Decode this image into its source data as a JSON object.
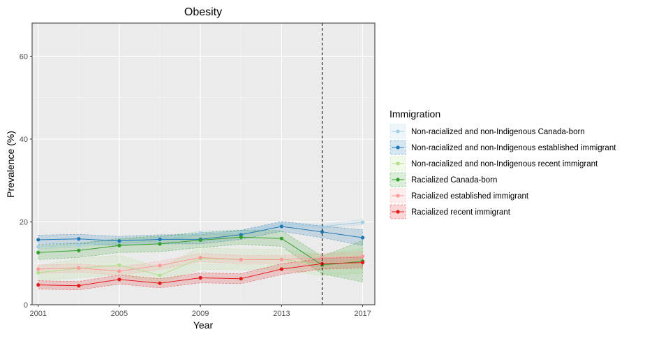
{
  "chart_data": {
    "type": "line",
    "title": "Obesity",
    "xlabel": "Year",
    "ylabel": "Prevalence (%)",
    "xlim": [
      2000.7,
      2017.6
    ],
    "ylim": [
      0,
      68
    ],
    "x_ticks": [
      2001,
      2005,
      2009,
      2013,
      2017
    ],
    "y_ticks": [
      0,
      20,
      40,
      60
    ],
    "grid": true,
    "vline_x": 2015,
    "legend": {
      "title": "Immigration",
      "position": "right"
    },
    "x": [
      2001,
      2003,
      2005,
      2007,
      2009,
      2011,
      2013,
      2015,
      2017
    ],
    "series": [
      {
        "name": "Non-racialized and non-Indigenous Canada-born",
        "color": "#a6cee3",
        "values": [
          14.0,
          14.4,
          15.3,
          15.9,
          17.3,
          17.5,
          19.4,
          18.9,
          19.9
        ],
        "lower": [
          13.4,
          13.9,
          14.8,
          15.4,
          16.8,
          17.0,
          18.9,
          18.4,
          19.3
        ],
        "upper": [
          14.6,
          14.9,
          15.8,
          16.4,
          17.8,
          18.0,
          19.9,
          19.4,
          20.5
        ]
      },
      {
        "name": "Non-racialized and non-Indigenous established immigrant",
        "color": "#1f78b4",
        "values": [
          15.7,
          15.9,
          15.4,
          15.8,
          15.8,
          16.9,
          18.9,
          17.6,
          16.2
        ],
        "lower": [
          14.6,
          14.8,
          14.3,
          14.7,
          14.7,
          15.8,
          17.7,
          16.2,
          14.3
        ],
        "upper": [
          16.8,
          17.0,
          16.5,
          16.9,
          16.9,
          18.0,
          20.1,
          19.0,
          18.1
        ]
      },
      {
        "name": "Non-racialized and non-Indigenous recent immigrant",
        "color": "#b2df8a",
        "values": [
          7.7,
          8.8,
          9.6,
          7.1,
          11.2,
          10.9,
          11.0,
          9.6,
          10.6
        ],
        "lower": [
          5.9,
          6.5,
          7.2,
          5.2,
          8.6,
          8.4,
          8.6,
          7.0,
          7.6
        ],
        "upper": [
          9.5,
          11.1,
          12.0,
          9.0,
          13.8,
          13.4,
          13.4,
          12.2,
          13.6
        ]
      },
      {
        "name": "Racialized Canada-born",
        "color": "#33a02c",
        "values": [
          12.6,
          13.1,
          14.3,
          14.7,
          15.6,
          16.3,
          16.0,
          9.6,
          10.5
        ],
        "lower": [
          10.9,
          11.4,
          12.6,
          12.8,
          13.8,
          14.6,
          14.1,
          7.5,
          5.5
        ],
        "upper": [
          14.3,
          14.8,
          16.0,
          16.6,
          17.4,
          18.0,
          17.9,
          11.7,
          15.5
        ]
      },
      {
        "name": "Racialized established immigrant",
        "color": "#fb9a99",
        "values": [
          8.6,
          8.9,
          8.1,
          9.5,
          11.4,
          10.9,
          10.9,
          11.3,
          11.7
        ],
        "lower": [
          7.6,
          7.9,
          7.1,
          8.5,
          10.4,
          9.9,
          9.9,
          10.3,
          10.6
        ],
        "upper": [
          9.6,
          9.9,
          9.1,
          10.5,
          12.4,
          11.9,
          11.9,
          12.3,
          12.8
        ]
      },
      {
        "name": "Racialized recent immigrant",
        "color": "#e31a1c",
        "values": [
          4.8,
          4.6,
          6.1,
          5.2,
          6.5,
          6.3,
          8.6,
          9.9,
          10.2
        ],
        "lower": [
          3.8,
          3.6,
          5.0,
          4.1,
          5.3,
          5.1,
          7.3,
          8.6,
          8.9
        ],
        "upper": [
          5.8,
          5.6,
          7.2,
          6.3,
          7.7,
          7.5,
          9.9,
          11.2,
          11.5
        ]
      }
    ]
  }
}
